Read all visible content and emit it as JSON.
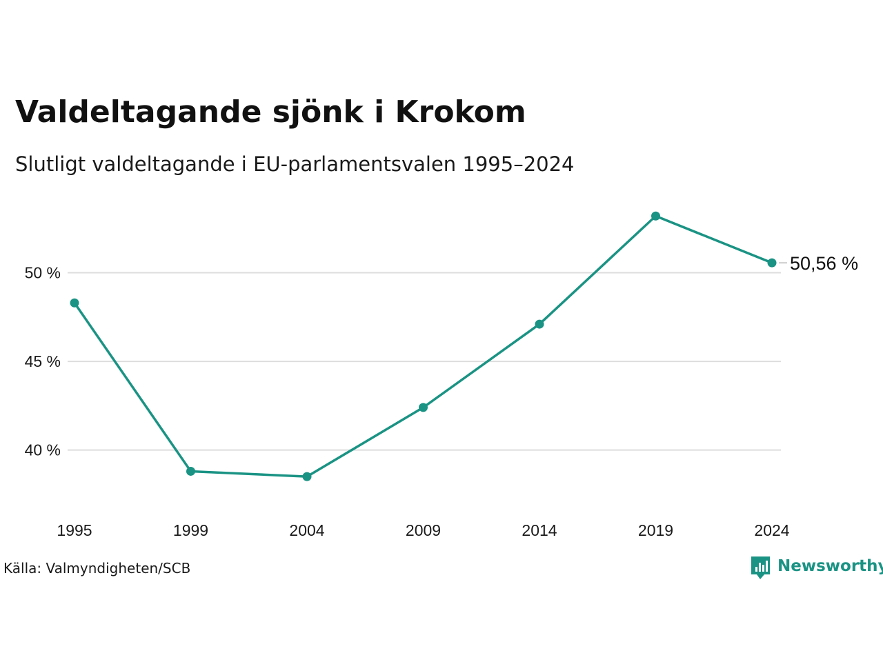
{
  "chart_data": {
    "type": "line",
    "title": "Valdeltagande sjönk i Krokom",
    "subtitle": "Slutligt valdeltagande i EU-parlamentsvalen 1995–2024",
    "x": [
      "1995",
      "1999",
      "2004",
      "2009",
      "2014",
      "2019",
      "2024"
    ],
    "series": [
      {
        "values": [
          48.3,
          38.8,
          38.5,
          42.4,
          47.1,
          53.2,
          50.56
        ],
        "color": "#1a9384"
      }
    ],
    "yticks": [
      40,
      45,
      50
    ],
    "ytick_labels": [
      "40 %",
      "45 %",
      "50 %"
    ],
    "ylim": [
      37.3,
      54.3
    ],
    "grid": true,
    "end_label": "50,56 %",
    "xlabel": "",
    "ylabel": ""
  },
  "source": "Källa: Valmyndigheten/SCB",
  "brand": {
    "name": "Newsworthy",
    "color": "#1a9384",
    "icon": "newsworthy-logo-icon"
  }
}
